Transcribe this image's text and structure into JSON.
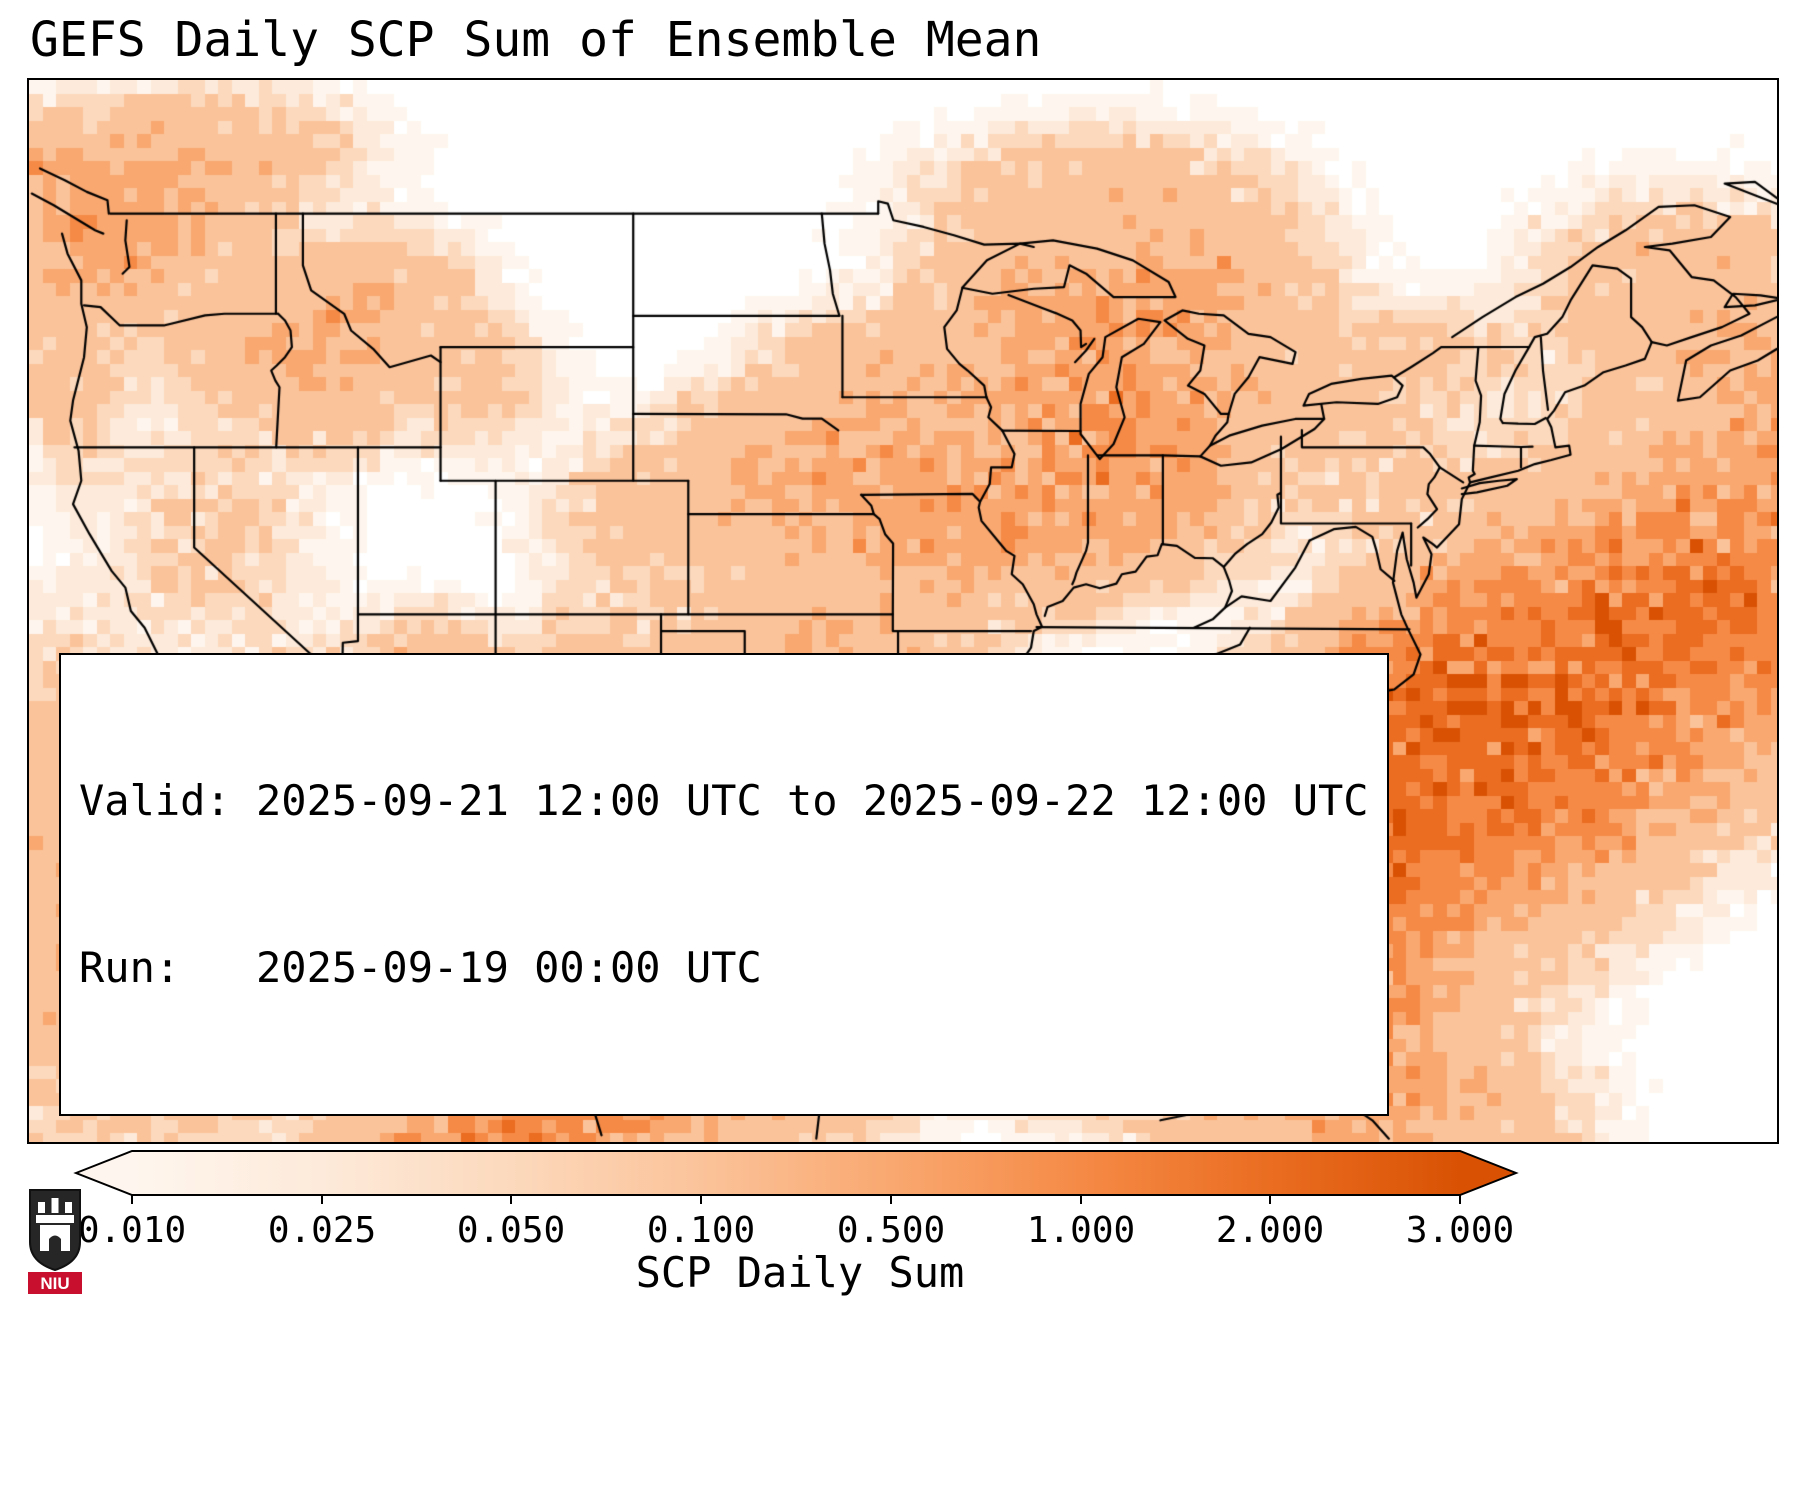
{
  "title": "GEFS Daily SCP Sum of Ensemble Mean",
  "info": {
    "valid_line": "Valid: 2025-09-21 12:00 UTC to 2025-09-22 12:00 UTC",
    "run_line": "Run:   2025-09-19 00:00 UTC"
  },
  "logo": {
    "text": "NIU"
  },
  "chart_data": {
    "type": "heatmap",
    "title": "GEFS Daily SCP Sum of Ensemble Mean",
    "variable": "SCP Daily Sum",
    "valid": "2025-09-21 12:00 UTC to 2025-09-22 12:00 UTC",
    "run": "2025-09-19 00:00 UTC",
    "region": "CONUS and surrounding waters",
    "extent": {
      "lon_min": -126.0,
      "lon_max": -62.5,
      "lat_min": 21.2,
      "lat_max": 53.0
    },
    "colorbar": {
      "label": "SCP Daily Sum",
      "ticks": [
        "0.010",
        "0.025",
        "0.050",
        "0.100",
        "0.500",
        "1.000",
        "2.000",
        "3.000"
      ],
      "levels": [
        0.01,
        0.025,
        0.05,
        0.1,
        0.5,
        1.0,
        2.0,
        3.0
      ],
      "under_color": "#ffffff",
      "over_color": "#d95204",
      "bin_colors": [
        "#fef6ee",
        "#fdeada",
        "#fcd9bc",
        "#fbc39a",
        "#f9a870",
        "#f58a46",
        "#ea6d21"
      ]
    },
    "hotspots": [
      {
        "lon": -71.5,
        "lat": 33.8,
        "amp": 2.4,
        "sx": 5.0,
        "sy": 2.6,
        "rot": 40
      },
      {
        "lon": -75.6,
        "lat": 35.4,
        "amp": 1.0,
        "sx": 1.8,
        "sy": 1.3,
        "rot": 30
      },
      {
        "lon": -78.2,
        "lat": 30.6,
        "amp": 0.9,
        "sx": 2.6,
        "sy": 2.2,
        "rot": 30
      },
      {
        "lon": -64.0,
        "lat": 37.0,
        "amp": 1.0,
        "sx": 2.6,
        "sy": 2.6,
        "rot": 0
      },
      {
        "lon": -89.0,
        "lat": 27.2,
        "amp": 2.0,
        "sx": 3.2,
        "sy": 1.6,
        "rot": 0
      },
      {
        "lon": -93.8,
        "lat": 27.8,
        "amp": 0.8,
        "sx": 2.2,
        "sy": 1.6,
        "rot": 0
      },
      {
        "lon": -84.5,
        "lat": 27.0,
        "amp": 1.1,
        "sx": 2.6,
        "sy": 2.2,
        "rot": 0
      },
      {
        "lon": -88.0,
        "lat": 29.9,
        "amp": 0.6,
        "sx": 3.2,
        "sy": 0.8,
        "rot": 0
      },
      {
        "lon": -81.7,
        "lat": 27.9,
        "amp": 0.65,
        "sx": 1.4,
        "sy": 2.4,
        "rot": -15
      },
      {
        "lon": -79.0,
        "lat": 25.3,
        "amp": 0.9,
        "sx": 2.2,
        "sy": 1.6,
        "rot": 0
      },
      {
        "lon": -81.0,
        "lat": 23.8,
        "amp": 0.5,
        "sx": 2.5,
        "sy": 1.2,
        "rot": 0
      },
      {
        "lon": -76.0,
        "lat": 21.8,
        "amp": 0.6,
        "sx": 2.5,
        "sy": 1.5,
        "rot": 0
      },
      {
        "lon": -98.3,
        "lat": 30.7,
        "amp": 0.85,
        "sx": 1.7,
        "sy": 1.5,
        "rot": 0
      },
      {
        "lon": -97.9,
        "lat": 27.3,
        "amp": 0.85,
        "sx": 1.4,
        "sy": 1.9,
        "rot": -15
      },
      {
        "lon": -99.8,
        "lat": 33.5,
        "amp": 0.4,
        "sx": 2.4,
        "sy": 1.7,
        "rot": 0
      },
      {
        "lon": -96.0,
        "lat": 29.8,
        "amp": 0.6,
        "sx": 1.5,
        "sy": 1.0,
        "rot": 0
      },
      {
        "lon": -99.0,
        "lat": 24.0,
        "amp": 0.5,
        "sx": 2.2,
        "sy": 2.0,
        "rot": 0
      },
      {
        "lon": -108.0,
        "lat": 21.5,
        "amp": 1.3,
        "sx": 3.2,
        "sy": 1.2,
        "rot": 15
      },
      {
        "lon": -104.5,
        "lat": 23.5,
        "amp": 0.35,
        "sx": 2.0,
        "sy": 1.5,
        "rot": 0
      },
      {
        "lon": -114.2,
        "lat": 29.3,
        "amp": 0.5,
        "sx": 1.1,
        "sy": 2.6,
        "rot": -25
      },
      {
        "lon": -113.5,
        "lat": 26.0,
        "amp": 0.45,
        "sx": 1.2,
        "sy": 1.5,
        "rot": 0
      },
      {
        "lon": -121.0,
        "lat": 25.5,
        "amp": 0.5,
        "sx": 3.2,
        "sy": 2.2,
        "rot": 10
      },
      {
        "lon": -125.3,
        "lat": 30.5,
        "amp": 0.3,
        "sx": 2.0,
        "sy": 3.0,
        "rot": 0
      },
      {
        "lon": -111.6,
        "lat": 34.3,
        "amp": 0.55,
        "sx": 1.4,
        "sy": 1.3,
        "rot": 0
      },
      {
        "lon": -110.3,
        "lat": 31.6,
        "amp": 0.35,
        "sx": 1.5,
        "sy": 1.0,
        "rot": 0
      },
      {
        "lon": -106.8,
        "lat": 28.2,
        "amp": 0.3,
        "sx": 1.8,
        "sy": 1.6,
        "rot": 0
      },
      {
        "lon": -105.5,
        "lat": 33.8,
        "amp": 0.3,
        "sx": 1.6,
        "sy": 1.6,
        "rot": 0
      },
      {
        "lon": -116.5,
        "lat": 33.4,
        "amp": 0.3,
        "sx": 1.3,
        "sy": 1.3,
        "rot": 0
      },
      {
        "lon": -98.6,
        "lat": 41.0,
        "amp": 0.55,
        "sx": 2.4,
        "sy": 1.3,
        "rot": 0
      },
      {
        "lon": -93.0,
        "lat": 40.8,
        "amp": 0.5,
        "sx": 2.6,
        "sy": 1.6,
        "rot": 0
      },
      {
        "lon": -89.0,
        "lat": 40.0,
        "amp": 0.45,
        "sx": 1.8,
        "sy": 1.5,
        "rot": 0
      },
      {
        "lon": -88.3,
        "lat": 43.7,
        "amp": 0.55,
        "sx": 1.9,
        "sy": 1.6,
        "rot": 0
      },
      {
        "lon": -85.2,
        "lat": 43.3,
        "amp": 0.5,
        "sx": 1.7,
        "sy": 1.5,
        "rot": 0
      },
      {
        "lon": -85.2,
        "lat": 40.2,
        "amp": 0.4,
        "sx": 1.9,
        "sy": 1.3,
        "rot": 0
      },
      {
        "lon": -94.8,
        "lat": 43.9,
        "amp": 0.35,
        "sx": 2.2,
        "sy": 1.2,
        "rot": 0
      },
      {
        "lon": -97.3,
        "lat": 36.3,
        "amp": 0.3,
        "sx": 2.4,
        "sy": 1.6,
        "rot": 0
      },
      {
        "lon": -93.2,
        "lat": 38.3,
        "amp": 0.3,
        "sx": 1.6,
        "sy": 1.3,
        "rot": 0
      },
      {
        "lon": -86.3,
        "lat": 46.3,
        "amp": 0.4,
        "sx": 2.4,
        "sy": 1.1,
        "rot": 0
      },
      {
        "lon": -83.5,
        "lat": 46.8,
        "amp": 0.4,
        "sx": 2.2,
        "sy": 1.2,
        "rot": 0
      },
      {
        "lon": -80.3,
        "lat": 43.8,
        "amp": 0.25,
        "sx": 1.8,
        "sy": 1.0,
        "rot": 0
      },
      {
        "lon": -87.0,
        "lat": 49.3,
        "amp": 0.3,
        "sx": 3.0,
        "sy": 1.2,
        "rot": 0
      },
      {
        "lon": -90.8,
        "lat": 46.6,
        "amp": 0.3,
        "sx": 1.5,
        "sy": 1.0,
        "rot": 0
      },
      {
        "lon": -123.8,
        "lat": 47.9,
        "amp": 0.5,
        "sx": 1.4,
        "sy": 1.1,
        "rot": 0
      },
      {
        "lon": -121.0,
        "lat": 48.6,
        "amp": 0.5,
        "sx": 1.7,
        "sy": 1.0,
        "rot": 0
      },
      {
        "lon": -124.5,
        "lat": 44.8,
        "amp": 0.3,
        "sx": 0.9,
        "sy": 1.8,
        "rot": 0
      },
      {
        "lon": -115.6,
        "lat": 44.4,
        "amp": 0.45,
        "sx": 1.5,
        "sy": 1.3,
        "rot": 0
      },
      {
        "lon": -113.4,
        "lat": 46.4,
        "amp": 0.35,
        "sx": 1.7,
        "sy": 1.1,
        "rot": 0
      },
      {
        "lon": -118.8,
        "lat": 45.2,
        "amp": 0.25,
        "sx": 1.4,
        "sy": 1.0,
        "rot": 0
      },
      {
        "lon": -125.3,
        "lat": 50.2,
        "amp": 0.5,
        "sx": 2.2,
        "sy": 1.0,
        "rot": 0
      },
      {
        "lon": -119.5,
        "lat": 50.8,
        "amp": 0.3,
        "sx": 2.5,
        "sy": 1.0,
        "rot": 0
      },
      {
        "lon": -110.0,
        "lat": 44.0,
        "amp": 0.15,
        "sx": 1.5,
        "sy": 1.2,
        "rot": 0
      },
      {
        "lon": -119.5,
        "lat": 39.5,
        "amp": 0.12,
        "sx": 2.0,
        "sy": 2.0,
        "rot": 0
      },
      {
        "lon": -104.5,
        "lat": 39.5,
        "amp": 0.12,
        "sx": 1.5,
        "sy": 1.5,
        "rot": 0
      },
      {
        "lon": -77.0,
        "lat": 41.3,
        "amp": 0.12,
        "sx": 2.2,
        "sy": 1.3,
        "rot": 0
      },
      {
        "lon": -75.0,
        "lat": 44.8,
        "amp": 0.15,
        "sx": 1.8,
        "sy": 0.9,
        "rot": 0
      },
      {
        "lon": -66.5,
        "lat": 46.5,
        "amp": 0.3,
        "sx": 2.2,
        "sy": 1.6,
        "rot": 0
      },
      {
        "lon": -62.5,
        "lat": 44.0,
        "amp": 0.5,
        "sx": 2.0,
        "sy": 2.0,
        "rot": 0
      },
      {
        "lon": -84.6,
        "lat": 41.8,
        "amp": 0.3,
        "sx": 1.5,
        "sy": 1.0,
        "rot": 0
      }
    ]
  }
}
